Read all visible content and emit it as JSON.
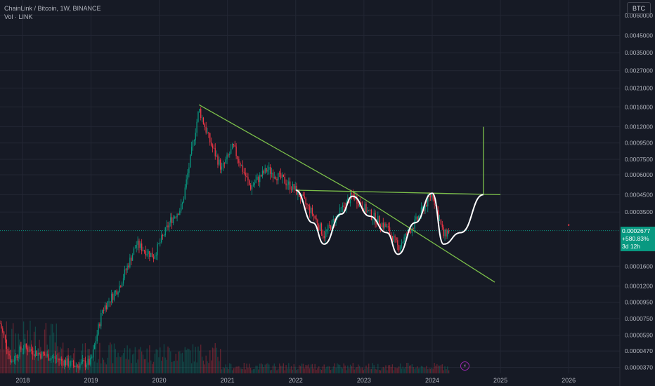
{
  "header": {
    "symbol_line": "ChainLink / Bitcoin, 1W, BINANCE",
    "volume_line": "Vol · LINK",
    "currency_button": "BTC"
  },
  "price_scale": {
    "ticks": [
      "0.0060000",
      "0.0045000",
      "0.0035000",
      "0.0027000",
      "0.0021000",
      "0.0016000",
      "0.0012000",
      "0.0009500",
      "0.0007500",
      "0.0006000",
      "0.0004500",
      "0.0003500",
      "0.0002677",
      "0.0001600",
      "0.0001200",
      "0.0000950",
      "0.0000750",
      "0.0000590",
      "0.0000470",
      "0.0000370"
    ]
  },
  "current_price": {
    "value": "0.0002677",
    "change": "+580.83%",
    "countdown": "3d 12h",
    "color": "#089981"
  },
  "colors": {
    "background": "#161a25",
    "up": "#089981",
    "down": "#f23645",
    "trendline": "#7cc04a",
    "pattern": "#ffffff",
    "grid": "#232734"
  },
  "icons": {
    "alert": "lightning-icon"
  },
  "chart_data": {
    "type": "candlestick",
    "title": "ChainLink / Bitcoin, 1W, BINANCE",
    "y_scale": "log",
    "ylim": [
      3.4e-05,
      0.0075
    ],
    "xlim": [
      "2017-09",
      "2026-10"
    ],
    "x_ticks": [
      "2018",
      "2019",
      "2020",
      "2021",
      "2022",
      "2023",
      "2024",
      "2025",
      "2026"
    ],
    "grid": true,
    "series_close_path": [
      {
        "date": "2017-09",
        "close": 7e-05
      },
      {
        "date": "2017-11",
        "close": 4e-05
      },
      {
        "date": "2018-01",
        "close": 5e-05
      },
      {
        "date": "2018-04",
        "close": 4.5e-05
      },
      {
        "date": "2018-07",
        "close": 4.2e-05
      },
      {
        "date": "2018-10",
        "close": 3.8e-05
      },
      {
        "date": "2019-01",
        "close": 4e-05
      },
      {
        "date": "2019-03",
        "close": 8.5e-05
      },
      {
        "date": "2019-06",
        "close": 0.00012
      },
      {
        "date": "2019-09",
        "close": 0.00022
      },
      {
        "date": "2019-12",
        "close": 0.000185
      },
      {
        "date": "2020-03",
        "close": 0.00031
      },
      {
        "date": "2020-05",
        "close": 0.00038
      },
      {
        "date": "2020-08",
        "close": 0.00155
      },
      {
        "date": "2020-10",
        "close": 0.00095
      },
      {
        "date": "2020-12",
        "close": 0.00065
      },
      {
        "date": "2021-02",
        "close": 0.0009
      },
      {
        "date": "2021-05",
        "close": 0.0005
      },
      {
        "date": "2021-08",
        "close": 0.00065
      },
      {
        "date": "2021-11",
        "close": 0.00055
      },
      {
        "date": "2022-01",
        "close": 0.00048
      },
      {
        "date": "2022-04",
        "close": 0.00034
      },
      {
        "date": "2022-06",
        "close": 0.00025
      },
      {
        "date": "2022-09",
        "close": 0.00036
      },
      {
        "date": "2022-11",
        "close": 0.00045
      },
      {
        "date": "2023-02",
        "close": 0.00034
      },
      {
        "date": "2023-05",
        "close": 0.00028
      },
      {
        "date": "2023-07",
        "close": 0.00021
      },
      {
        "date": "2023-10",
        "close": 0.0003
      },
      {
        "date": "2024-01",
        "close": 0.00046
      },
      {
        "date": "2024-03",
        "close": 0.00025
      },
      {
        "date": "2024-04",
        "close": 0.000268
      }
    ],
    "annotations": {
      "descending_trendline_1": [
        {
          "date": "2020-08",
          "price": 0.00165
        },
        {
          "date": "2022-11",
          "price": 0.00047
        }
      ],
      "descending_trendline_2": [
        {
          "date": "2022-11",
          "price": 0.00047
        },
        {
          "date": "2024-12",
          "price": 0.000127
        }
      ],
      "horizontal_resistance": [
        {
          "date": "2022-01",
          "price": 0.00048
        },
        {
          "date": "2025-01",
          "price": 0.00045
        }
      ],
      "projection_vertical": [
        {
          "date": "2024-10",
          "price": 0.00045
        },
        {
          "date": "2024-10",
          "price": 0.0012
        }
      ]
    }
  }
}
